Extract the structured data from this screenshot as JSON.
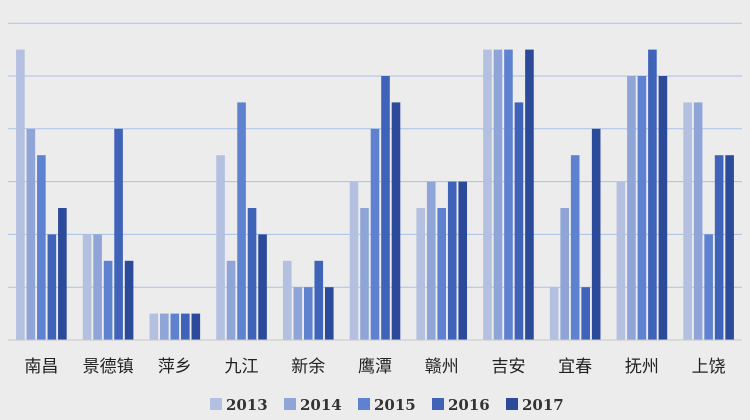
{
  "chart_data": {
    "type": "bar",
    "categories": [
      "南昌",
      "景德镇",
      "萍乡",
      "九江",
      "新余",
      "鹰潭",
      "赣州",
      "吉安",
      "宜春",
      "抚州",
      "上饶"
    ],
    "series": [
      {
        "name": "2013",
        "color": "#b4c0e0",
        "values": [
          11,
          4,
          1,
          7,
          3,
          6,
          5,
          11,
          2,
          6,
          9
        ]
      },
      {
        "name": "2014",
        "color": "#8fa5d8",
        "values": [
          8,
          4,
          1,
          3,
          2,
          5,
          6,
          11,
          5,
          10,
          9
        ]
      },
      {
        "name": "2015",
        "color": "#5f82d0",
        "values": [
          7,
          3,
          1,
          9,
          2,
          8,
          5,
          11,
          7,
          10,
          4
        ]
      },
      {
        "name": "2016",
        "color": "#3f63b8",
        "values": [
          4,
          8,
          1,
          5,
          3,
          10,
          6,
          9,
          2,
          11,
          7
        ]
      },
      {
        "name": "2017",
        "color": "#2b4a9a",
        "values": [
          5,
          3,
          1,
          4,
          2,
          9,
          6,
          11,
          8,
          10,
          7
        ]
      }
    ],
    "ylim": [
      0,
      12
    ],
    "grid": true,
    "legend": "bottom"
  }
}
